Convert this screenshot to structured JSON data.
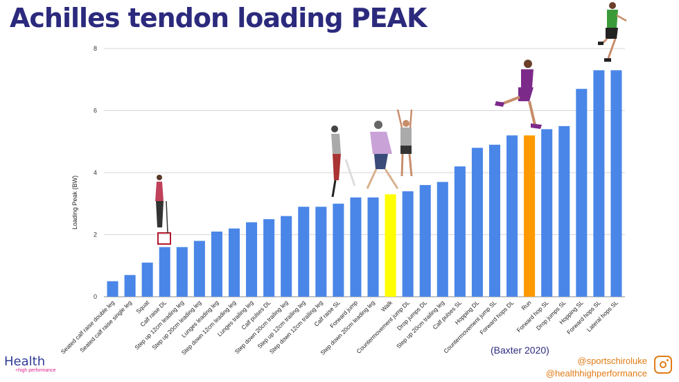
{
  "title": "Achilles tendon loading PEAK",
  "citation": "(Baxter 2020)",
  "brand": {
    "name": "Health",
    "tagline": "+high performance"
  },
  "social": {
    "handle_1": "@sportschiroluke",
    "handle_2": "@healthhighperformance",
    "icon": "instagram-icon"
  },
  "colors": {
    "title": "#2b2a7d",
    "bar": "#4a86e8",
    "walk_highlight": "#ffff00",
    "run_highlight": "#ff9900",
    "handles": "#e07b15"
  },
  "chart_data": {
    "type": "bar",
    "ylabel": "Loading Peak (BW)",
    "xlabel": "",
    "ylim": [
      0,
      8
    ],
    "yticks": [
      0,
      2,
      4,
      6,
      8
    ],
    "grid": true,
    "categories": [
      "Seated calf raise double leg",
      "Seated calf raise single leg",
      "Squat",
      "Calf raise DL",
      "Step up 12cm leading leg",
      "Step up 20cm leading leg",
      "Lunges leading leg",
      "Step down 12cm leading leg",
      "Lunges trailing leg",
      "Calf pulses DL",
      "Step down 20cm trailing leg",
      "Step up 12cm trailing leg",
      "Step down 12cm trailing leg",
      "Calf raise SL",
      "Forward jump",
      "Step down 20cm leading leg",
      "Walk",
      "Countermovement jump DL",
      "Drop jumps DL",
      "Step up 20cm trailing leg",
      "Calf pulses SL",
      "Hopping DL",
      "Countermovement jump SL",
      "Forward hops DL",
      "Run",
      "Forward hop SL",
      "Drop jumps SL",
      "Hopping SL",
      "Forward hops SL",
      "Lateral hops SL"
    ],
    "values": [
      0.5,
      0.7,
      1.1,
      1.6,
      1.6,
      1.8,
      2.1,
      2.2,
      2.4,
      2.5,
      2.6,
      2.9,
      2.9,
      3.0,
      3.2,
      3.2,
      3.3,
      3.4,
      3.6,
      3.7,
      4.2,
      4.8,
      4.9,
      5.2,
      5.2,
      5.4,
      5.5,
      6.7,
      7.3,
      7.3
    ],
    "highlights": {
      "Walk": "#ffff00",
      "Run": "#ff9900"
    }
  }
}
